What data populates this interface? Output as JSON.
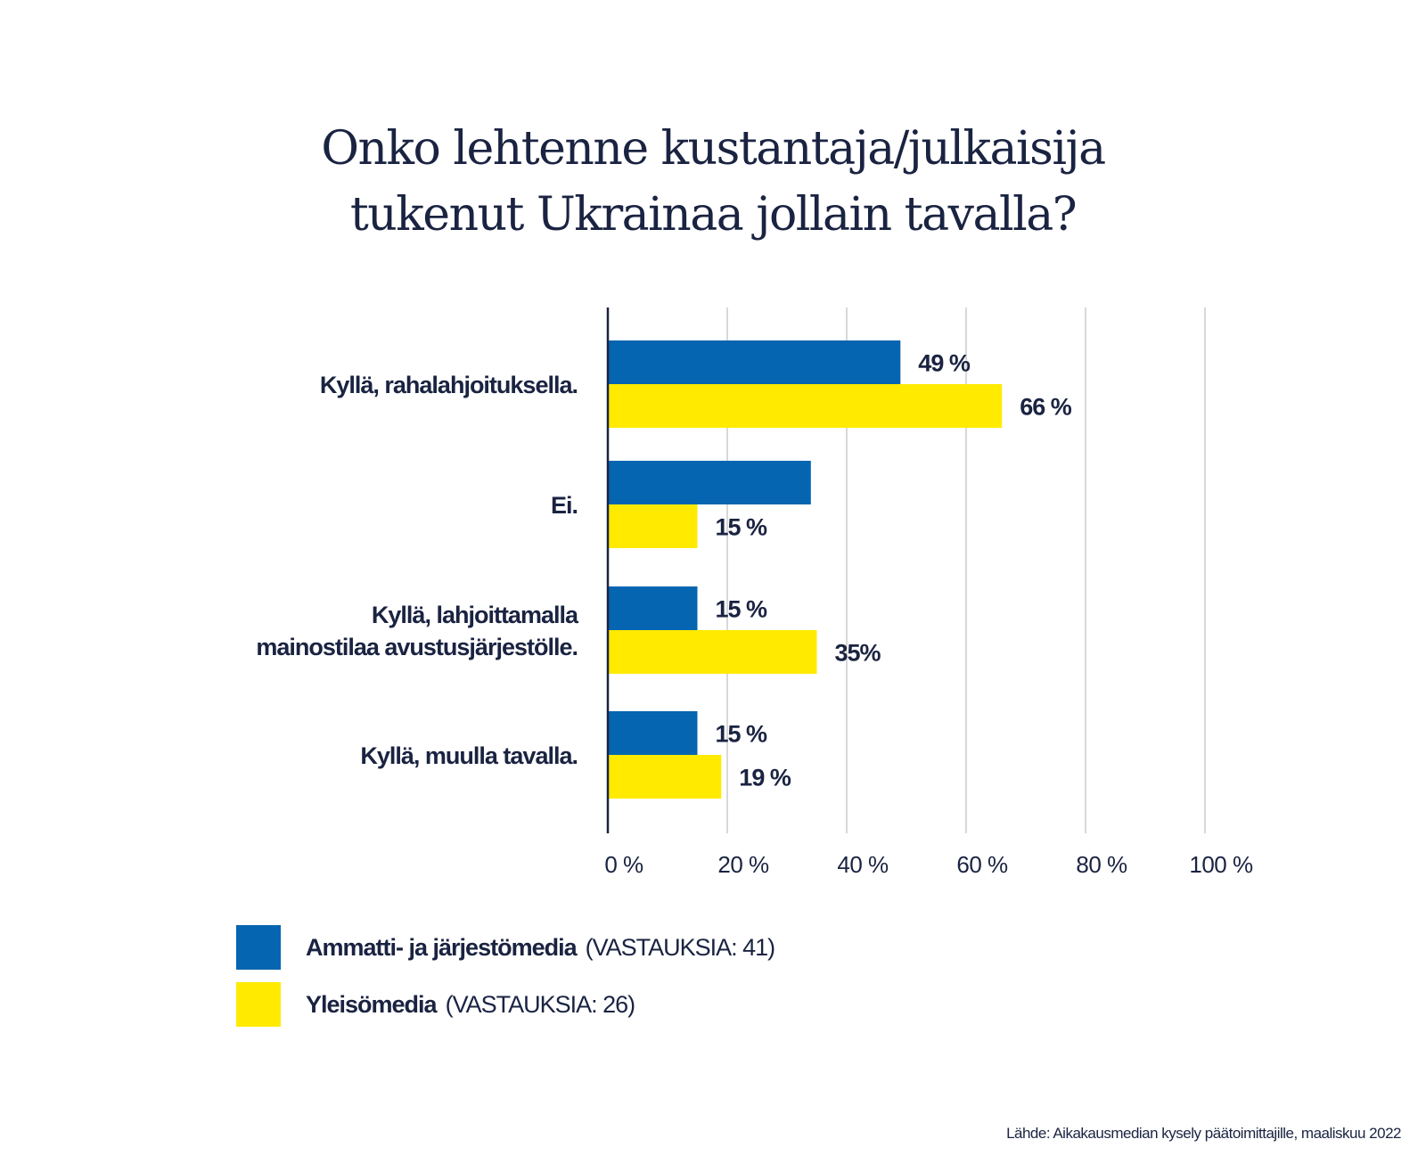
{
  "title_lines": [
    "Onko lehtenne kustantaja/julkaisija",
    "tukenut Ukrainaa jollain tavalla?"
  ],
  "colors": {
    "series1": "#0565b0",
    "series2": "#ffea00",
    "text": "#1a2341",
    "grid": "#bfbfbf"
  },
  "chart_data": {
    "type": "bar",
    "orientation": "horizontal",
    "categories": [
      [
        "Kyllä, rahalahjoituksella."
      ],
      [
        "Ei."
      ],
      [
        "Kyllä, lahjoittamalla",
        "mainostilaa avustusjärjestölle."
      ],
      [
        "Kyllä, muulla tavalla."
      ]
    ],
    "series": [
      {
        "name": "Ammatti- ja järjestömedia",
        "values": [
          49,
          34,
          15,
          15
        ],
        "labels": [
          "49 %",
          "",
          "15 %",
          "15 %"
        ]
      },
      {
        "name": "Yleisömedia",
        "values": [
          66,
          15,
          35,
          19
        ],
        "labels": [
          "66 %",
          "15 %",
          "35%",
          "19 %"
        ]
      }
    ],
    "xlim": [
      0,
      100
    ],
    "xticks": [
      0,
      20,
      40,
      60,
      80,
      100
    ],
    "xtick_labels": [
      "0 %",
      "20 %",
      "40 %",
      "60 %",
      "80 %",
      "100 %"
    ],
    "grid": true,
    "legend_position": "bottom-left"
  },
  "legend": [
    {
      "name": "Ammatti- ja järjestömedia",
      "note": "(VASTAUKSIA: 41)"
    },
    {
      "name": "Yleisömedia",
      "note": "(VASTAUKSIA: 26)"
    }
  ],
  "source": "Lähde: Aikakausmedian kysely päätoimittajille, maaliskuu 2022"
}
